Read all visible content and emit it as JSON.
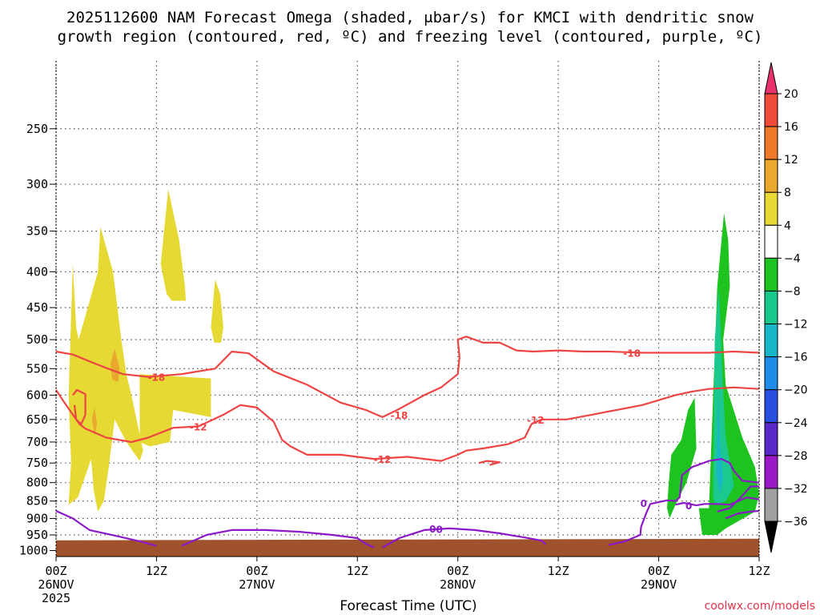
{
  "chart_data": {
    "type": "heatmap",
    "title_line1": "2025112600 NAM Forecast Omega (shaded, μbar/s) for KMCI with dendritic snow",
    "title_line2": "growth region (contoured, red, ºC) and freezing level (contoured, purple, ºC)",
    "xlabel": "Forecast Time (UTC)",
    "credit": "coolwx.com/models",
    "x_ticks": [
      {
        "hour": 0,
        "label": "00Z",
        "date": "26NOV",
        "year": "2025"
      },
      {
        "hour": 12,
        "label": "12Z",
        "date": "",
        "year": ""
      },
      {
        "hour": 24,
        "label": "00Z",
        "date": "27NOV",
        "year": ""
      },
      {
        "hour": 36,
        "label": "12Z",
        "date": "",
        "year": ""
      },
      {
        "hour": 48,
        "label": "00Z",
        "date": "28NOV",
        "year": ""
      },
      {
        "hour": 60,
        "label": "12Z",
        "date": "",
        "year": ""
      },
      {
        "hour": 72,
        "label": "00Z",
        "date": "29NOV",
        "year": ""
      },
      {
        "hour": 84,
        "label": "12Z",
        "date": "",
        "year": ""
      }
    ],
    "xlim": [
      0,
      84
    ],
    "y_ticks": [
      250,
      300,
      350,
      400,
      450,
      500,
      550,
      600,
      650,
      700,
      750,
      800,
      850,
      900,
      950,
      1000
    ],
    "ylim": [
      200,
      1020
    ],
    "y_scale": "log-pressure",
    "grid": true,
    "colorbar": {
      "labels": [
        "20",
        "16",
        "12",
        "8",
        "4",
        "−4",
        "−8",
        "−12",
        "−16",
        "−20",
        "−24",
        "−28",
        "−32",
        "−36"
      ],
      "colors": [
        "#e8336a",
        "#f04a3a",
        "#ee7a2a",
        "#e9a82e",
        "#e9d934",
        "#ffffff",
        "#1fc31f",
        "#19c88a",
        "#19b6c8",
        "#1e8ce8",
        "#2850e0",
        "#5a28c8",
        "#9a19c8",
        "#a0a0a0",
        "#000000"
      ]
    },
    "shading": [
      {
        "value": 4,
        "color": "#e6d934",
        "points": [
          [
            1.8,
            750
          ],
          [
            1.5,
            600
          ],
          [
            2,
            390
          ],
          [
            2.4,
            480
          ],
          [
            2.7,
            500
          ],
          [
            5,
            400
          ],
          [
            5.3,
            345
          ],
          [
            6.8,
            400
          ],
          [
            7.8,
            500
          ],
          [
            8.4,
            560
          ],
          [
            9,
            600
          ],
          [
            10.4,
            720
          ],
          [
            10,
            745
          ],
          [
            8.4,
            700
          ],
          [
            7,
            650
          ],
          [
            6.3,
            760
          ],
          [
            5.7,
            850
          ],
          [
            5,
            880
          ],
          [
            4.5,
            820
          ],
          [
            4.2,
            740
          ],
          [
            2.6,
            840
          ],
          [
            1.5,
            860
          ]
        ]
      },
      {
        "value": 4,
        "color": "#e6d934",
        "points": [
          [
            10,
            560
          ],
          [
            18.5,
            568
          ],
          [
            18.5,
            645
          ],
          [
            14,
            630
          ],
          [
            13.6,
            700
          ],
          [
            11.2,
            710
          ],
          [
            10,
            700
          ]
        ]
      },
      {
        "value": 4,
        "color": "#e6d934",
        "points": [
          [
            12.5,
            390
          ],
          [
            13.4,
            305
          ],
          [
            14.7,
            360
          ],
          [
            15.4,
            420
          ],
          [
            15.5,
            440
          ],
          [
            13.8,
            440
          ],
          [
            13.2,
            430
          ]
        ]
      },
      {
        "value": 4,
        "color": "#e6d934",
        "points": [
          [
            18.5,
            480
          ],
          [
            19,
            410
          ],
          [
            19.6,
            430
          ],
          [
            20,
            480
          ],
          [
            19.7,
            505
          ],
          [
            18.9,
            505
          ]
        ]
      },
      {
        "value": 8,
        "color": "#e9a82e",
        "points": [
          [
            6.5,
            540
          ],
          [
            7,
            515
          ],
          [
            7.6,
            550
          ],
          [
            7.4,
            575
          ],
          [
            6.7,
            570
          ]
        ]
      },
      {
        "value": 8,
        "color": "#e9a82e",
        "points": [
          [
            4.3,
            650
          ],
          [
            4.6,
            625
          ],
          [
            4.9,
            660
          ],
          [
            4.6,
            685
          ]
        ]
      },
      {
        "value": -4,
        "color": "#1fc31f",
        "points": [
          [
            78,
            870
          ],
          [
            79,
            420
          ],
          [
            79.8,
            330
          ],
          [
            80.3,
            360
          ],
          [
            80.5,
            420
          ],
          [
            79.7,
            500
          ],
          [
            80,
            580
          ],
          [
            82,
            690
          ],
          [
            83.5,
            760
          ],
          [
            84,
            830
          ],
          [
            83.5,
            880
          ],
          [
            80,
            930
          ],
          [
            79,
            950
          ],
          [
            77.2,
            950
          ],
          [
            76.8,
            870
          ]
        ]
      },
      {
        "value": -4,
        "color": "#1fc31f",
        "points": [
          [
            73.2,
            800
          ],
          [
            73.5,
            730
          ],
          [
            74.7,
            695
          ],
          [
            75.5,
            630
          ],
          [
            76.3,
            605
          ],
          [
            76.5,
            715
          ],
          [
            75.3,
            800
          ],
          [
            74,
            860
          ],
          [
            73.3,
            900
          ],
          [
            73,
            870
          ]
        ]
      },
      {
        "value": -8,
        "color": "#1bc88f",
        "points": [
          [
            78.5,
            840
          ],
          [
            78.7,
            500
          ],
          [
            79.2,
            420
          ],
          [
            79.6,
            560
          ],
          [
            80,
            690
          ],
          [
            81,
            810
          ],
          [
            80,
            850
          ],
          [
            78.8,
            860
          ]
        ]
      },
      {
        "value": -12,
        "color": "#19b6c8",
        "points": [
          [
            78.9,
            780
          ],
          [
            79.1,
            600
          ],
          [
            79.3,
            700
          ],
          [
            79.7,
            790
          ],
          [
            79.3,
            830
          ]
        ]
      }
    ],
    "contours": [
      {
        "kind": "dendritic",
        "label": "-18",
        "color": "#ee4444",
        "label_at": [
          12,
          565
        ],
        "points": [
          [
            0,
            520
          ],
          [
            2,
            525
          ],
          [
            4.5,
            540
          ],
          [
            6.2,
            550
          ],
          [
            8,
            560
          ],
          [
            11,
            565
          ],
          [
            15,
            560
          ],
          [
            19,
            550
          ],
          [
            21,
            520
          ],
          [
            23,
            523
          ],
          [
            26,
            555
          ],
          [
            30,
            580
          ],
          [
            34,
            615
          ],
          [
            37,
            630
          ],
          [
            39,
            645
          ],
          [
            41,
            628
          ],
          [
            44,
            600
          ],
          [
            46,
            585
          ],
          [
            48,
            560
          ],
          [
            48.2,
            530
          ],
          [
            48,
            500
          ],
          [
            49,
            495
          ],
          [
            51,
            505
          ],
          [
            53,
            505
          ],
          [
            55,
            518
          ],
          [
            57,
            520
          ],
          [
            60,
            518
          ],
          [
            63,
            520
          ],
          [
            66,
            520
          ],
          [
            70,
            522
          ],
          [
            74,
            522
          ],
          [
            78,
            522
          ],
          [
            81,
            520
          ],
          [
            84,
            522
          ]
        ]
      },
      {
        "kind": "dendritic",
        "label": "-18",
        "color": "#ee4444",
        "label_at": [
          41,
          640
        ],
        "points": []
      },
      {
        "kind": "dendritic",
        "label": "-18",
        "color": "#ee4444",
        "label_at": [
          68.8,
          522
        ],
        "points": []
      },
      {
        "kind": "dendritic",
        "label": "-12",
        "color": "#ee4444",
        "label_at": [
          17,
          665
        ],
        "points": [
          [
            0,
            590
          ],
          [
            1,
            615
          ],
          [
            2.8,
            660
          ],
          [
            3.5,
            670
          ],
          [
            6,
            690
          ],
          [
            9,
            700
          ],
          [
            11,
            690
          ],
          [
            14,
            668
          ],
          [
            17,
            665
          ],
          [
            20,
            640
          ],
          [
            22,
            620
          ],
          [
            24,
            625
          ],
          [
            26,
            655
          ],
          [
            27,
            695
          ],
          [
            28,
            710
          ],
          [
            30,
            730
          ],
          [
            34,
            730
          ],
          [
            38,
            740
          ],
          [
            42,
            735
          ],
          [
            46,
            745
          ],
          [
            48,
            730
          ],
          [
            49,
            720
          ],
          [
            51,
            715
          ],
          [
            54,
            705
          ],
          [
            56,
            690
          ],
          [
            56.8,
            660
          ],
          [
            58,
            650
          ],
          [
            61,
            650
          ],
          [
            64,
            640
          ],
          [
            67,
            630
          ],
          [
            70,
            620
          ],
          [
            74,
            600
          ],
          [
            76,
            593
          ],
          [
            78,
            588
          ],
          [
            81,
            585
          ],
          [
            84,
            588
          ]
        ]
      },
      {
        "kind": "dendritic",
        "label": "-12",
        "color": "#ee4444",
        "label_at": [
          39,
          740
        ],
        "points": []
      },
      {
        "kind": "dendritic",
        "label": "-12",
        "color": "#ee4444",
        "label_at": [
          57.3,
          650
        ],
        "points": []
      },
      {
        "kind": "dendritic",
        "label": "",
        "color": "#ee4444",
        "label_at": [
          0,
          0
        ],
        "points": [
          [
            2,
            600
          ],
          [
            2.5,
            590
          ],
          [
            3.5,
            598
          ],
          [
            3.5,
            640
          ],
          [
            3,
            660
          ],
          [
            2.4,
            650
          ],
          [
            2.2,
            620
          ]
        ]
      },
      {
        "kind": "dendritic",
        "label": "",
        "color": "#ee4444",
        "label_at": [
          0,
          0
        ],
        "points": [
          [
            50.5,
            750
          ],
          [
            51.5,
            745
          ],
          [
            53,
            748
          ],
          [
            51.8,
            755
          ]
        ]
      },
      {
        "kind": "freezing",
        "label": "0",
        "color": "#8b19c8",
        "label_at": [
          45,
          930
        ],
        "points": [
          [
            0,
            878
          ],
          [
            2,
            900
          ],
          [
            4,
            935
          ],
          [
            7,
            952
          ],
          [
            10,
            970
          ],
          [
            12,
            985
          ]
        ]
      },
      {
        "kind": "freezing",
        "label": "",
        "color": "#8b19c8",
        "label_at": [
          0,
          0
        ],
        "points": [
          [
            15,
            985
          ],
          [
            18,
            950
          ],
          [
            21,
            935
          ],
          [
            25,
            935
          ],
          [
            29,
            940
          ],
          [
            33,
            950
          ],
          [
            36,
            960
          ],
          [
            37,
            978
          ],
          [
            38,
            990
          ]
        ]
      },
      {
        "kind": "freezing",
        "label": "0",
        "color": "#8b19c8",
        "label_at": [
          45.8,
          932
        ],
        "points": [
          [
            39,
            990
          ],
          [
            41,
            960
          ],
          [
            44,
            935
          ],
          [
            47,
            930
          ],
          [
            50,
            935
          ],
          [
            53,
            945
          ],
          [
            56,
            958
          ],
          [
            58,
            968
          ],
          [
            58.5,
            980
          ]
        ]
      },
      {
        "kind": "freezing",
        "label": "0",
        "color": "#8b19c8",
        "label_at": [
          70.2,
          855
        ],
        "points": [
          [
            66,
            982
          ],
          [
            68,
            970
          ],
          [
            69.8,
            950
          ],
          [
            69.9,
            925
          ],
          [
            70.5,
            885
          ],
          [
            71,
            858
          ],
          [
            73,
            848
          ],
          [
            74,
            850
          ],
          [
            74.5,
            840
          ],
          [
            74.8,
            780
          ],
          [
            76,
            760
          ],
          [
            78,
            745
          ],
          [
            79.5,
            740
          ],
          [
            80.5,
            750
          ],
          [
            81,
            770
          ],
          [
            82,
            795
          ],
          [
            84,
            800
          ]
        ]
      },
      {
        "kind": "freezing",
        "label": "0",
        "color": "#8b19c8",
        "label_at": [
          75.6,
          862
        ],
        "points": [
          [
            74,
            860
          ],
          [
            75,
            855
          ],
          [
            76.5,
            862
          ],
          [
            77.5,
            858
          ],
          [
            79,
            858
          ],
          [
            80.5,
            860
          ],
          [
            81.5,
            850
          ],
          [
            82.5,
            840
          ],
          [
            84,
            845
          ]
        ]
      },
      {
        "kind": "freezing",
        "label": "",
        "color": "#8b19c8",
        "label_at": [
          0,
          0
        ],
        "points": [
          [
            79,
            880
          ],
          [
            80.5,
            870
          ],
          [
            82,
            835
          ],
          [
            83,
            810
          ],
          [
            84,
            810
          ]
        ]
      },
      {
        "kind": "freezing",
        "label": "",
        "color": "#8b19c8",
        "label_at": [
          0,
          0
        ],
        "points": [
          [
            80,
            900
          ],
          [
            81.5,
            885
          ],
          [
            83,
            880
          ],
          [
            84,
            878
          ]
        ]
      }
    ],
    "terrain": {
      "color": "#a0522d",
      "points": [
        [
          0,
          967
        ],
        [
          84,
          962
        ]
      ]
    }
  }
}
